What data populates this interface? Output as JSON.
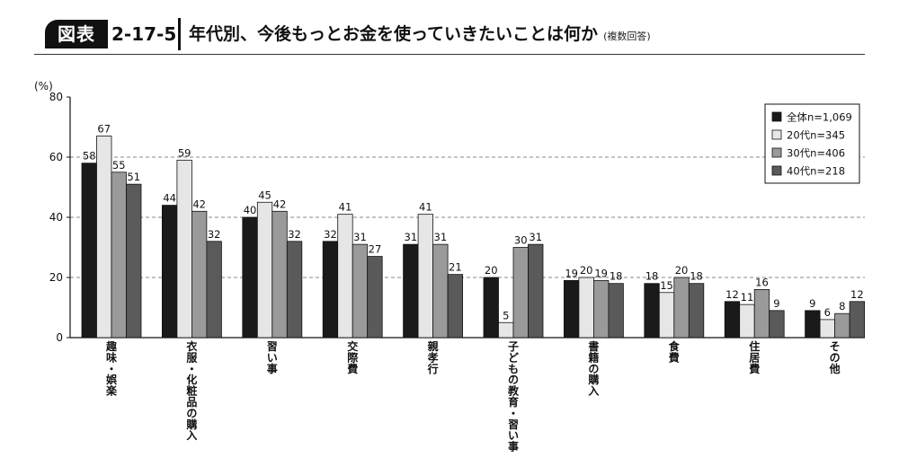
{
  "header": {
    "badge": "図表",
    "figure_number": "2-17-5",
    "title": "年代別、今後もっとお金を使っていきたいことは何か",
    "note": "(複数回答)"
  },
  "chart_data": {
    "type": "bar",
    "y_unit_label": "(%)",
    "ylim": [
      0,
      80
    ],
    "yticks": [
      0,
      20,
      40,
      60,
      80
    ],
    "grid": "dashed horizontal at 20, 40, 60",
    "legend_position": "top-right",
    "categories": [
      "趣味・娯楽",
      "衣服・化粧品の購入",
      "習い事",
      "交際費",
      "親孝行",
      "子どもの教育・習い事",
      "書籍の購入",
      "食費",
      "住居費",
      "その他"
    ],
    "series": [
      {
        "name": "全体n=1,069",
        "color": "#1a1a1a",
        "values": [
          58,
          44,
          40,
          32,
          31,
          20,
          19,
          18,
          12,
          9
        ]
      },
      {
        "name": "20代n=345",
        "color": "#e6e6e6",
        "values": [
          67,
          59,
          45,
          41,
          41,
          5,
          20,
          15,
          11,
          6
        ]
      },
      {
        "name": "30代n=406",
        "color": "#9a9a9a",
        "values": [
          55,
          42,
          42,
          31,
          31,
          30,
          19,
          20,
          16,
          8
        ]
      },
      {
        "name": "40代n=218",
        "color": "#5a5a5a",
        "values": [
          51,
          32,
          32,
          27,
          21,
          31,
          18,
          18,
          9,
          12
        ]
      }
    ]
  }
}
